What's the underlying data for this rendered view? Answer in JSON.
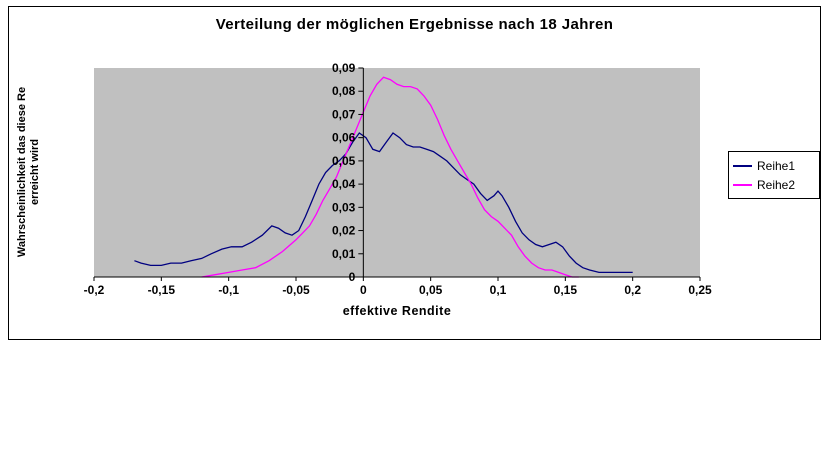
{
  "chart": {
    "title": "Verteilung der möglichen Ergebnisse nach 18 Jahren",
    "y_axis_title_line1": "Wahrscheinlichkeit das diese Re",
    "y_axis_title_line2": "erreicht wird",
    "x_axis_title": "effektive Rendite"
  },
  "chart_data": {
    "type": "line",
    "title": "Verteilung der möglichen Ergebnisse nach 18 Jahren",
    "xlabel": "effektive Rendite",
    "ylabel": "Wahrscheinlichkeit das diese Re erreicht wird",
    "xlim": [
      -0.2,
      0.25
    ],
    "ylim": [
      0,
      0.09
    ],
    "grid": false,
    "legend_position": "right",
    "plot_bg": "#C0C0C0",
    "x_tick_values": [
      -0.2,
      -0.15,
      -0.1,
      -0.05,
      0,
      0.05,
      0.1,
      0.15,
      0.2,
      0.25
    ],
    "x_tick_labels": [
      "-0,2",
      "-0,15",
      "-0,1",
      "-0,05",
      "0",
      "0,05",
      "0,1",
      "0,15",
      "0,2",
      "0,25"
    ],
    "y_tick_values": [
      0,
      0.01,
      0.02,
      0.03,
      0.04,
      0.05,
      0.06,
      0.07,
      0.08,
      0.09
    ],
    "y_tick_labels": [
      "0",
      "0,01",
      "0,02",
      "0,03",
      "0,04",
      "0,05",
      "0,06",
      "0,07",
      "0,08",
      "0,09"
    ],
    "series": [
      {
        "name": "Reihe1",
        "color": "#000080",
        "points": [
          [
            -0.17,
            0.007
          ],
          [
            -0.165,
            0.006
          ],
          [
            -0.158,
            0.005
          ],
          [
            -0.15,
            0.005
          ],
          [
            -0.143,
            0.006
          ],
          [
            -0.135,
            0.006
          ],
          [
            -0.128,
            0.007
          ],
          [
            -0.12,
            0.008
          ],
          [
            -0.113,
            0.01
          ],
          [
            -0.105,
            0.012
          ],
          [
            -0.098,
            0.013
          ],
          [
            -0.09,
            0.013
          ],
          [
            -0.083,
            0.015
          ],
          [
            -0.075,
            0.018
          ],
          [
            -0.068,
            0.022
          ],
          [
            -0.063,
            0.021
          ],
          [
            -0.058,
            0.019
          ],
          [
            -0.053,
            0.018
          ],
          [
            -0.048,
            0.02
          ],
          [
            -0.043,
            0.026
          ],
          [
            -0.038,
            0.033
          ],
          [
            -0.033,
            0.04
          ],
          [
            -0.028,
            0.045
          ],
          [
            -0.023,
            0.048
          ],
          [
            -0.018,
            0.05
          ],
          [
            -0.013,
            0.053
          ],
          [
            -0.008,
            0.058
          ],
          [
            -0.003,
            0.062
          ],
          [
            0.002,
            0.06
          ],
          [
            0.007,
            0.055
          ],
          [
            0.012,
            0.054
          ],
          [
            0.017,
            0.058
          ],
          [
            0.022,
            0.062
          ],
          [
            0.027,
            0.06
          ],
          [
            0.032,
            0.057
          ],
          [
            0.037,
            0.056
          ],
          [
            0.042,
            0.056
          ],
          [
            0.047,
            0.055
          ],
          [
            0.052,
            0.054
          ],
          [
            0.057,
            0.052
          ],
          [
            0.062,
            0.05
          ],
          [
            0.067,
            0.047
          ],
          [
            0.072,
            0.044
          ],
          [
            0.077,
            0.042
          ],
          [
            0.082,
            0.04
          ],
          [
            0.087,
            0.036
          ],
          [
            0.092,
            0.033
          ],
          [
            0.097,
            0.035
          ],
          [
            0.1,
            0.037
          ],
          [
            0.103,
            0.035
          ],
          [
            0.108,
            0.03
          ],
          [
            0.113,
            0.024
          ],
          [
            0.118,
            0.019
          ],
          [
            0.123,
            0.016
          ],
          [
            0.128,
            0.014
          ],
          [
            0.133,
            0.013
          ],
          [
            0.138,
            0.014
          ],
          [
            0.143,
            0.015
          ],
          [
            0.148,
            0.013
          ],
          [
            0.153,
            0.009
          ],
          [
            0.158,
            0.006
          ],
          [
            0.163,
            0.004
          ],
          [
            0.168,
            0.003
          ],
          [
            0.175,
            0.002
          ],
          [
            0.185,
            0.002
          ],
          [
            0.195,
            0.002
          ],
          [
            0.2,
            0.002
          ]
        ]
      },
      {
        "name": "Reihe2",
        "color": "#FF00FF",
        "points": [
          [
            -0.12,
            0.0
          ],
          [
            -0.11,
            0.001
          ],
          [
            -0.1,
            0.002
          ],
          [
            -0.09,
            0.003
          ],
          [
            -0.08,
            0.004
          ],
          [
            -0.07,
            0.007
          ],
          [
            -0.06,
            0.011
          ],
          [
            -0.05,
            0.016
          ],
          [
            -0.045,
            0.019
          ],
          [
            -0.04,
            0.022
          ],
          [
            -0.035,
            0.027
          ],
          [
            -0.03,
            0.033
          ],
          [
            -0.025,
            0.038
          ],
          [
            -0.02,
            0.043
          ],
          [
            -0.015,
            0.05
          ],
          [
            -0.01,
            0.057
          ],
          [
            -0.005,
            0.064
          ],
          [
            0.0,
            0.071
          ],
          [
            0.005,
            0.078
          ],
          [
            0.01,
            0.083
          ],
          [
            0.015,
            0.086
          ],
          [
            0.02,
            0.085
          ],
          [
            0.025,
            0.083
          ],
          [
            0.03,
            0.082
          ],
          [
            0.035,
            0.082
          ],
          [
            0.04,
            0.081
          ],
          [
            0.045,
            0.078
          ],
          [
            0.05,
            0.074
          ],
          [
            0.055,
            0.068
          ],
          [
            0.06,
            0.061
          ],
          [
            0.065,
            0.055
          ],
          [
            0.07,
            0.05
          ],
          [
            0.075,
            0.045
          ],
          [
            0.08,
            0.04
          ],
          [
            0.085,
            0.034
          ],
          [
            0.09,
            0.029
          ],
          [
            0.095,
            0.026
          ],
          [
            0.1,
            0.024
          ],
          [
            0.105,
            0.021
          ],
          [
            0.11,
            0.018
          ],
          [
            0.115,
            0.013
          ],
          [
            0.12,
            0.009
          ],
          [
            0.125,
            0.006
          ],
          [
            0.13,
            0.004
          ],
          [
            0.135,
            0.003
          ],
          [
            0.14,
            0.003
          ],
          [
            0.145,
            0.002
          ],
          [
            0.15,
            0.001
          ],
          [
            0.155,
            0.0
          ],
          [
            0.16,
            0.0
          ]
        ]
      }
    ]
  }
}
